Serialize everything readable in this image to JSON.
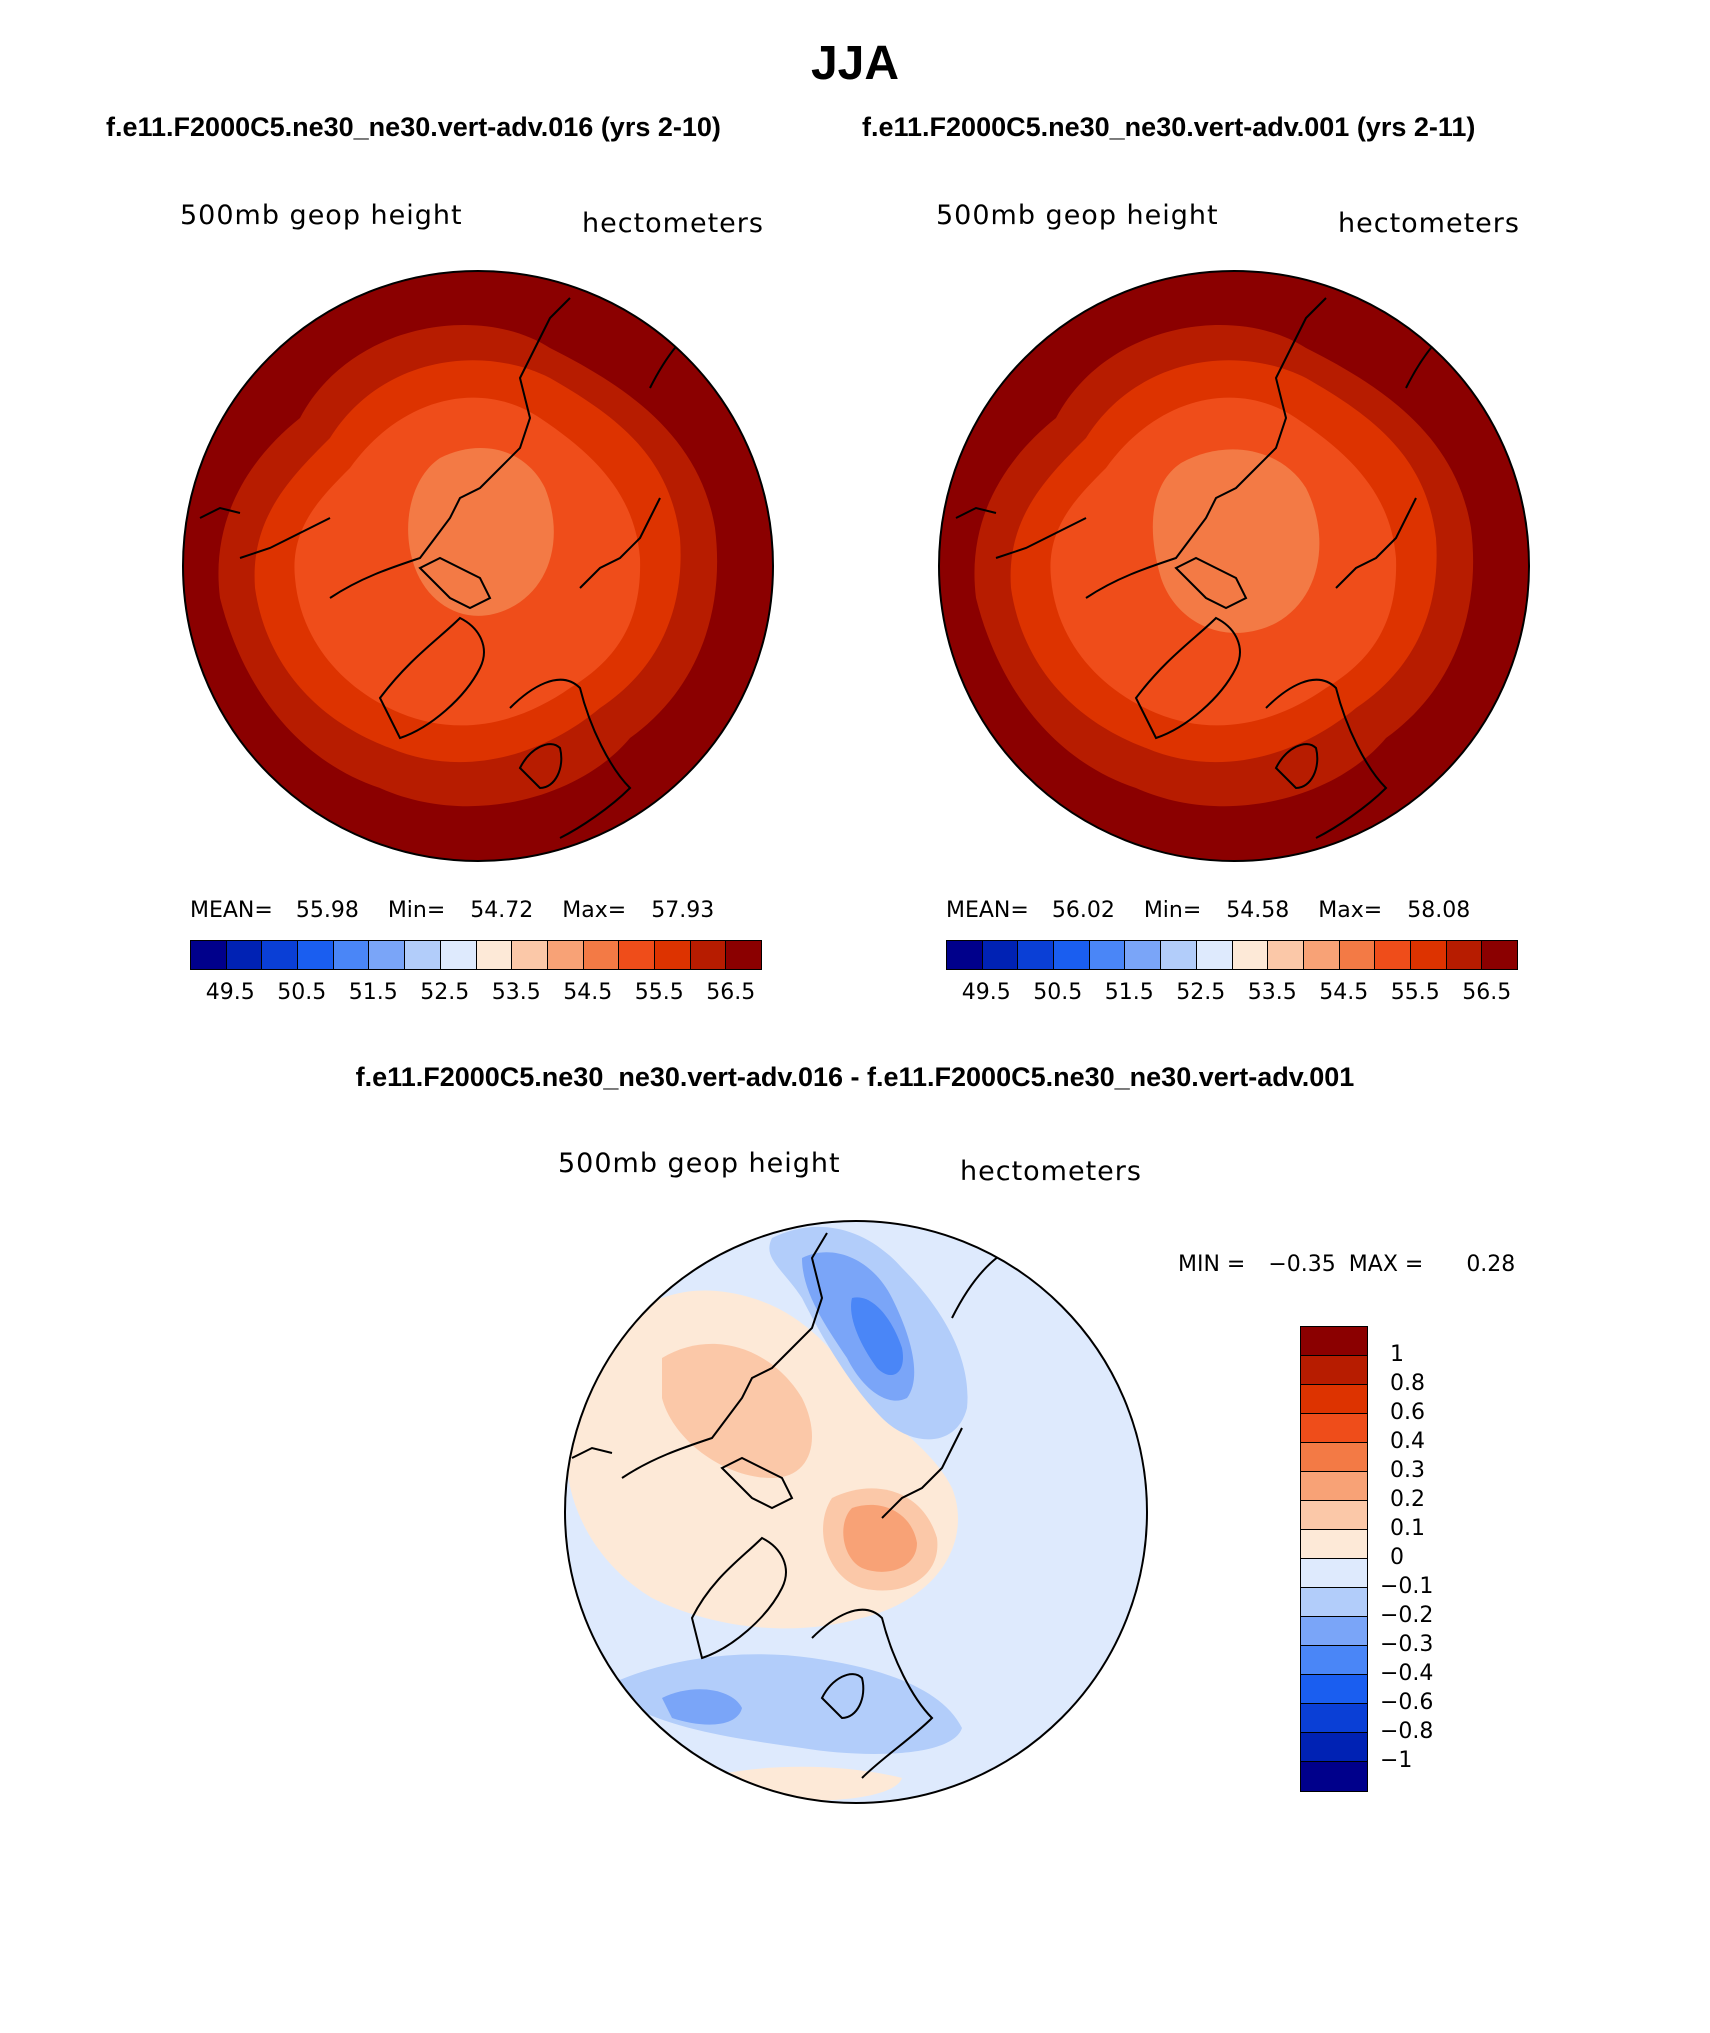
{
  "title": "JJA",
  "case_left": "f.e11.F2000C5.ne30_ne30.vert-adv.016 (yrs 2-10)",
  "case_right": "f.e11.F2000C5.ne30_ne30.vert-adv.001 (yrs 2-11)",
  "diff_title": "f.e11.F2000C5.ne30_ne30.vert-adv.016 - f.e11.F2000C5.ne30_ne30.vert-adv.001",
  "panels": [
    {
      "variable": "500mb geop height",
      "units": "hectometers",
      "mean_label": "MEAN=",
      "mean": "55.98",
      "min_label": "Min=",
      "min": "54.72",
      "max_label": "Max=",
      "max": "57.93"
    },
    {
      "variable": "500mb geop height",
      "units": "hectometers",
      "mean_label": "MEAN=",
      "mean": "56.02",
      "min_label": "Min=",
      "min": "54.58",
      "max_label": "Max=",
      "max": "58.08"
    }
  ],
  "diff_panel": {
    "variable": "500mb geop height",
    "units": "hectometers",
    "min_label": "MIN =",
    "min": "−0.35",
    "max_label": "MAX =",
    "max": "0.28"
  },
  "main_colorbar": {
    "colors": [
      "#00008b",
      "#0022b4",
      "#0a3fd6",
      "#1a5ef0",
      "#4a86f7",
      "#7aa5f8",
      "#b2cdfa",
      "#deeafd",
      "#fde9d7",
      "#fbc8a8",
      "#f8a276",
      "#f37a45",
      "#ef4d1a",
      "#dd3300",
      "#b71c00",
      "#8b0000"
    ],
    "labels": [
      "49.5",
      "50.5",
      "51.5",
      "52.5",
      "53.5",
      "54.5",
      "55.5",
      "56.5"
    ]
  },
  "diff_colorbar": {
    "colors": [
      "#8b0000",
      "#b71c00",
      "#dd3300",
      "#ef4d1a",
      "#f37a45",
      "#f8a276",
      "#fbc8a8",
      "#fde9d7",
      "#deeafd",
      "#b2cdfa",
      "#7aa5f8",
      "#4a86f7",
      "#1a5ef0",
      "#0a3fd6",
      "#0022b4",
      "#00008b"
    ],
    "labels": [
      "1",
      "0.8",
      "0.6",
      "0.4",
      "0.3",
      "0.2",
      "0.1",
      "0",
      "−0.1",
      "−0.2",
      "−0.3",
      "−0.4",
      "−0.6",
      "−0.8",
      "−1"
    ]
  },
  "colors": {
    "outer_ring": "#8b0000",
    "ring2": "#b71c00",
    "ring3": "#dd3300",
    "ring4": "#ef4d1a",
    "ring5": "#f37a45",
    "diff_background": "#deeafd",
    "diff_pos1": "#fde9d7",
    "diff_pos2": "#fbc8a8",
    "diff_pos3": "#f8a276",
    "diff_neg2": "#b2cdfa",
    "diff_neg3": "#7aa5f8",
    "diff_neg4": "#4a86f7"
  }
}
